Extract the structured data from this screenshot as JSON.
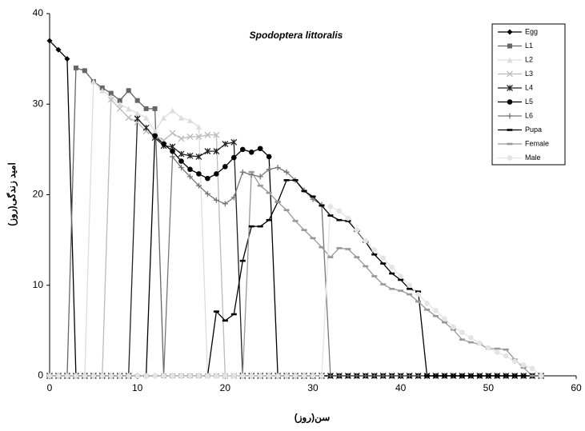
{
  "chart_data": {
    "type": "line",
    "title": "Spodoptera littoralis",
    "x_label": "سن(روز)",
    "y_label": "امید زندگی(روز)",
    "x": [
      0,
      1,
      2,
      3,
      4,
      5,
      6,
      7,
      8,
      9,
      10,
      11,
      12,
      13,
      14,
      15,
      16,
      17,
      18,
      19,
      20,
      21,
      22,
      23,
      24,
      25,
      26,
      27,
      28,
      29,
      30,
      31,
      32,
      33,
      34,
      35,
      36,
      37,
      38,
      39,
      40,
      41,
      42,
      43,
      44,
      45,
      46,
      47,
      48,
      49,
      50,
      51,
      52,
      53,
      54,
      55,
      56
    ],
    "xlim": [
      0,
      60
    ],
    "xticks": [
      0,
      10,
      20,
      30,
      40,
      50,
      60
    ],
    "ylim": [
      0,
      40
    ],
    "yticks": [
      0,
      10,
      20,
      30,
      40
    ],
    "grid": false,
    "legend": "upper right",
    "series": [
      {
        "name": "Egg",
        "color": "#000000",
        "marker": "diamond",
        "values": [
          37,
          36,
          35,
          0,
          0,
          0,
          0,
          0,
          0,
          0,
          0,
          0,
          0,
          0,
          0,
          0,
          0,
          0,
          0,
          0,
          0,
          0,
          0,
          0,
          0,
          0,
          0,
          0,
          0,
          0,
          0,
          0,
          0,
          0,
          0,
          0,
          0,
          0,
          0,
          0,
          0,
          0,
          0,
          0,
          0,
          0,
          0,
          0,
          0,
          0,
          0,
          0,
          0,
          0,
          0,
          0,
          0
        ]
      },
      {
        "name": "L1",
        "color": "#666666",
        "marker": "square",
        "values": [
          0,
          0,
          0,
          34,
          33.7,
          32.5,
          31.8,
          31.2,
          30.4,
          31.5,
          30.4,
          29.5,
          29.5,
          0,
          0,
          0,
          0,
          0,
          0,
          0,
          0,
          0,
          0,
          0,
          0,
          0,
          0,
          0,
          0,
          0,
          0,
          0,
          0,
          0,
          0,
          0,
          0,
          0,
          0,
          0,
          0,
          0,
          0,
          0,
          0,
          0,
          0,
          0,
          0,
          0,
          0,
          0,
          0,
          0,
          0,
          0,
          0
        ]
      },
      {
        "name": "L2",
        "color": "#dddddd",
        "marker": "triangle",
        "values": [
          0,
          0,
          0,
          0,
          0,
          32.5,
          31.5,
          30.8,
          30,
          29.5,
          29,
          28.5,
          27,
          28.5,
          29.3,
          28.5,
          28.2,
          27.5,
          0,
          0,
          0,
          0,
          0,
          0,
          0,
          0,
          0,
          0,
          0,
          0,
          0,
          0,
          0,
          0,
          0,
          0,
          0,
          0,
          0,
          0,
          0,
          0,
          0,
          0,
          0,
          0,
          0,
          0,
          0,
          0,
          0,
          0,
          0,
          0,
          0,
          0,
          0
        ]
      },
      {
        "name": "L3",
        "color": "#bbbbbb",
        "marker": "x",
        "values": [
          0,
          0,
          0,
          0,
          0,
          0,
          0,
          30.5,
          29.5,
          28.5,
          28,
          27,
          26.5,
          26,
          26.8,
          26.2,
          26.4,
          26.4,
          26.6,
          26.6,
          0,
          0,
          0,
          0,
          0,
          0,
          0,
          0,
          0,
          0,
          0,
          0,
          0,
          0,
          0,
          0,
          0,
          0,
          0,
          0,
          0,
          0,
          0,
          0,
          0,
          0,
          0,
          0,
          0,
          0,
          0,
          0,
          0,
          0,
          0,
          0,
          0
        ]
      },
      {
        "name": "L4",
        "color": "#222222",
        "marker": "star",
        "values": [
          0,
          0,
          0,
          0,
          0,
          0,
          0,
          0,
          0,
          0,
          28.4,
          27.4,
          26.3,
          25.4,
          25.3,
          24.5,
          24.3,
          24.2,
          24.8,
          24.8,
          25.6,
          25.8,
          0,
          0,
          0,
          0,
          0,
          0,
          0,
          0,
          0,
          0,
          0,
          0,
          0,
          0,
          0,
          0,
          0,
          0,
          0,
          0,
          0,
          0,
          0,
          0,
          0,
          0,
          0,
          0,
          0,
          0,
          0,
          0,
          0,
          0,
          0
        ]
      },
      {
        "name": "L5",
        "color": "#000000",
        "marker": "circle",
        "values": [
          0,
          0,
          0,
          0,
          0,
          0,
          0,
          0,
          0,
          0,
          0,
          0,
          26.5,
          25.6,
          24.8,
          23.7,
          22.8,
          22.3,
          21.8,
          22.3,
          23.1,
          24.1,
          25,
          24.7,
          25.1,
          24.2,
          0,
          0,
          0,
          0,
          0,
          0,
          0,
          0,
          0,
          0,
          0,
          0,
          0,
          0,
          0,
          0,
          0,
          0,
          0,
          0,
          0,
          0,
          0,
          0,
          0,
          0,
          0,
          0,
          0,
          0,
          0
        ]
      },
      {
        "name": "L6",
        "color": "#777777",
        "marker": "plus",
        "values": [
          0,
          0,
          0,
          0,
          0,
          0,
          0,
          0,
          0,
          0,
          0,
          0,
          0,
          0,
          24.2,
          23,
          22,
          21,
          20.1,
          19.4,
          19,
          19.7,
          22.5,
          22.2,
          22,
          22.8,
          23,
          22.5,
          21.6,
          20.5,
          19.5,
          18.9,
          0,
          0,
          0,
          0,
          0,
          0,
          0,
          0,
          0,
          0,
          0,
          0,
          0,
          0,
          0,
          0,
          0,
          0,
          0,
          0,
          0,
          0,
          0,
          0,
          0
        ]
      },
      {
        "name": "Pupa",
        "color": "#000000",
        "marker": "dash",
        "values": [
          0,
          0,
          0,
          0,
          0,
          0,
          0,
          0,
          0,
          0,
          0,
          0,
          0,
          0,
          0,
          0,
          0,
          0,
          0,
          7.1,
          6.1,
          6.8,
          12.7,
          16.5,
          16.5,
          17.2,
          19.2,
          21.6,
          21.6,
          20.4,
          19.8,
          18.8,
          17.7,
          17.2,
          17.1,
          16,
          14.8,
          13.4,
          12.4,
          11.3,
          10.6,
          9.6,
          9.3,
          0,
          0,
          0,
          0,
          0,
          0,
          0,
          0,
          0,
          0,
          0,
          0,
          0,
          0
        ]
      },
      {
        "name": "Female",
        "color": "#999999",
        "marker": "dash",
        "values": [
          0,
          0,
          0,
          0,
          0,
          0,
          0,
          0,
          0,
          0,
          0,
          0,
          0,
          0,
          0,
          0,
          0,
          0,
          0,
          0,
          0,
          0,
          0,
          22.5,
          21,
          20.2,
          19.2,
          18.3,
          17.1,
          16.1,
          15.2,
          14.2,
          13.1,
          14.1,
          14,
          13.1,
          12.1,
          11,
          10.1,
          9.6,
          9.4,
          9,
          8.2,
          7.3,
          6.6,
          5.9,
          5.1,
          4,
          3.7,
          3.5,
          3,
          3,
          2.9,
          1.8,
          0.9,
          0,
          0
        ]
      },
      {
        "name": "Male",
        "color": "#e4e4e4",
        "marker": "circle",
        "values": [
          0,
          0,
          0,
          0,
          0,
          0,
          0,
          0,
          0,
          0,
          0,
          0,
          0,
          0,
          0,
          0,
          0,
          0,
          0,
          0,
          0,
          0,
          0,
          0,
          0,
          0,
          0,
          0,
          0,
          0,
          0,
          0,
          18.7,
          18.2,
          17.4,
          16.1,
          14.9,
          13.9,
          13,
          12,
          11,
          10,
          9,
          8,
          7.2,
          6.3,
          5.4,
          4.8,
          4.2,
          3.6,
          3.1,
          2.6,
          2.2,
          1.6,
          1.2,
          0.8,
          0
        ]
      }
    ]
  }
}
